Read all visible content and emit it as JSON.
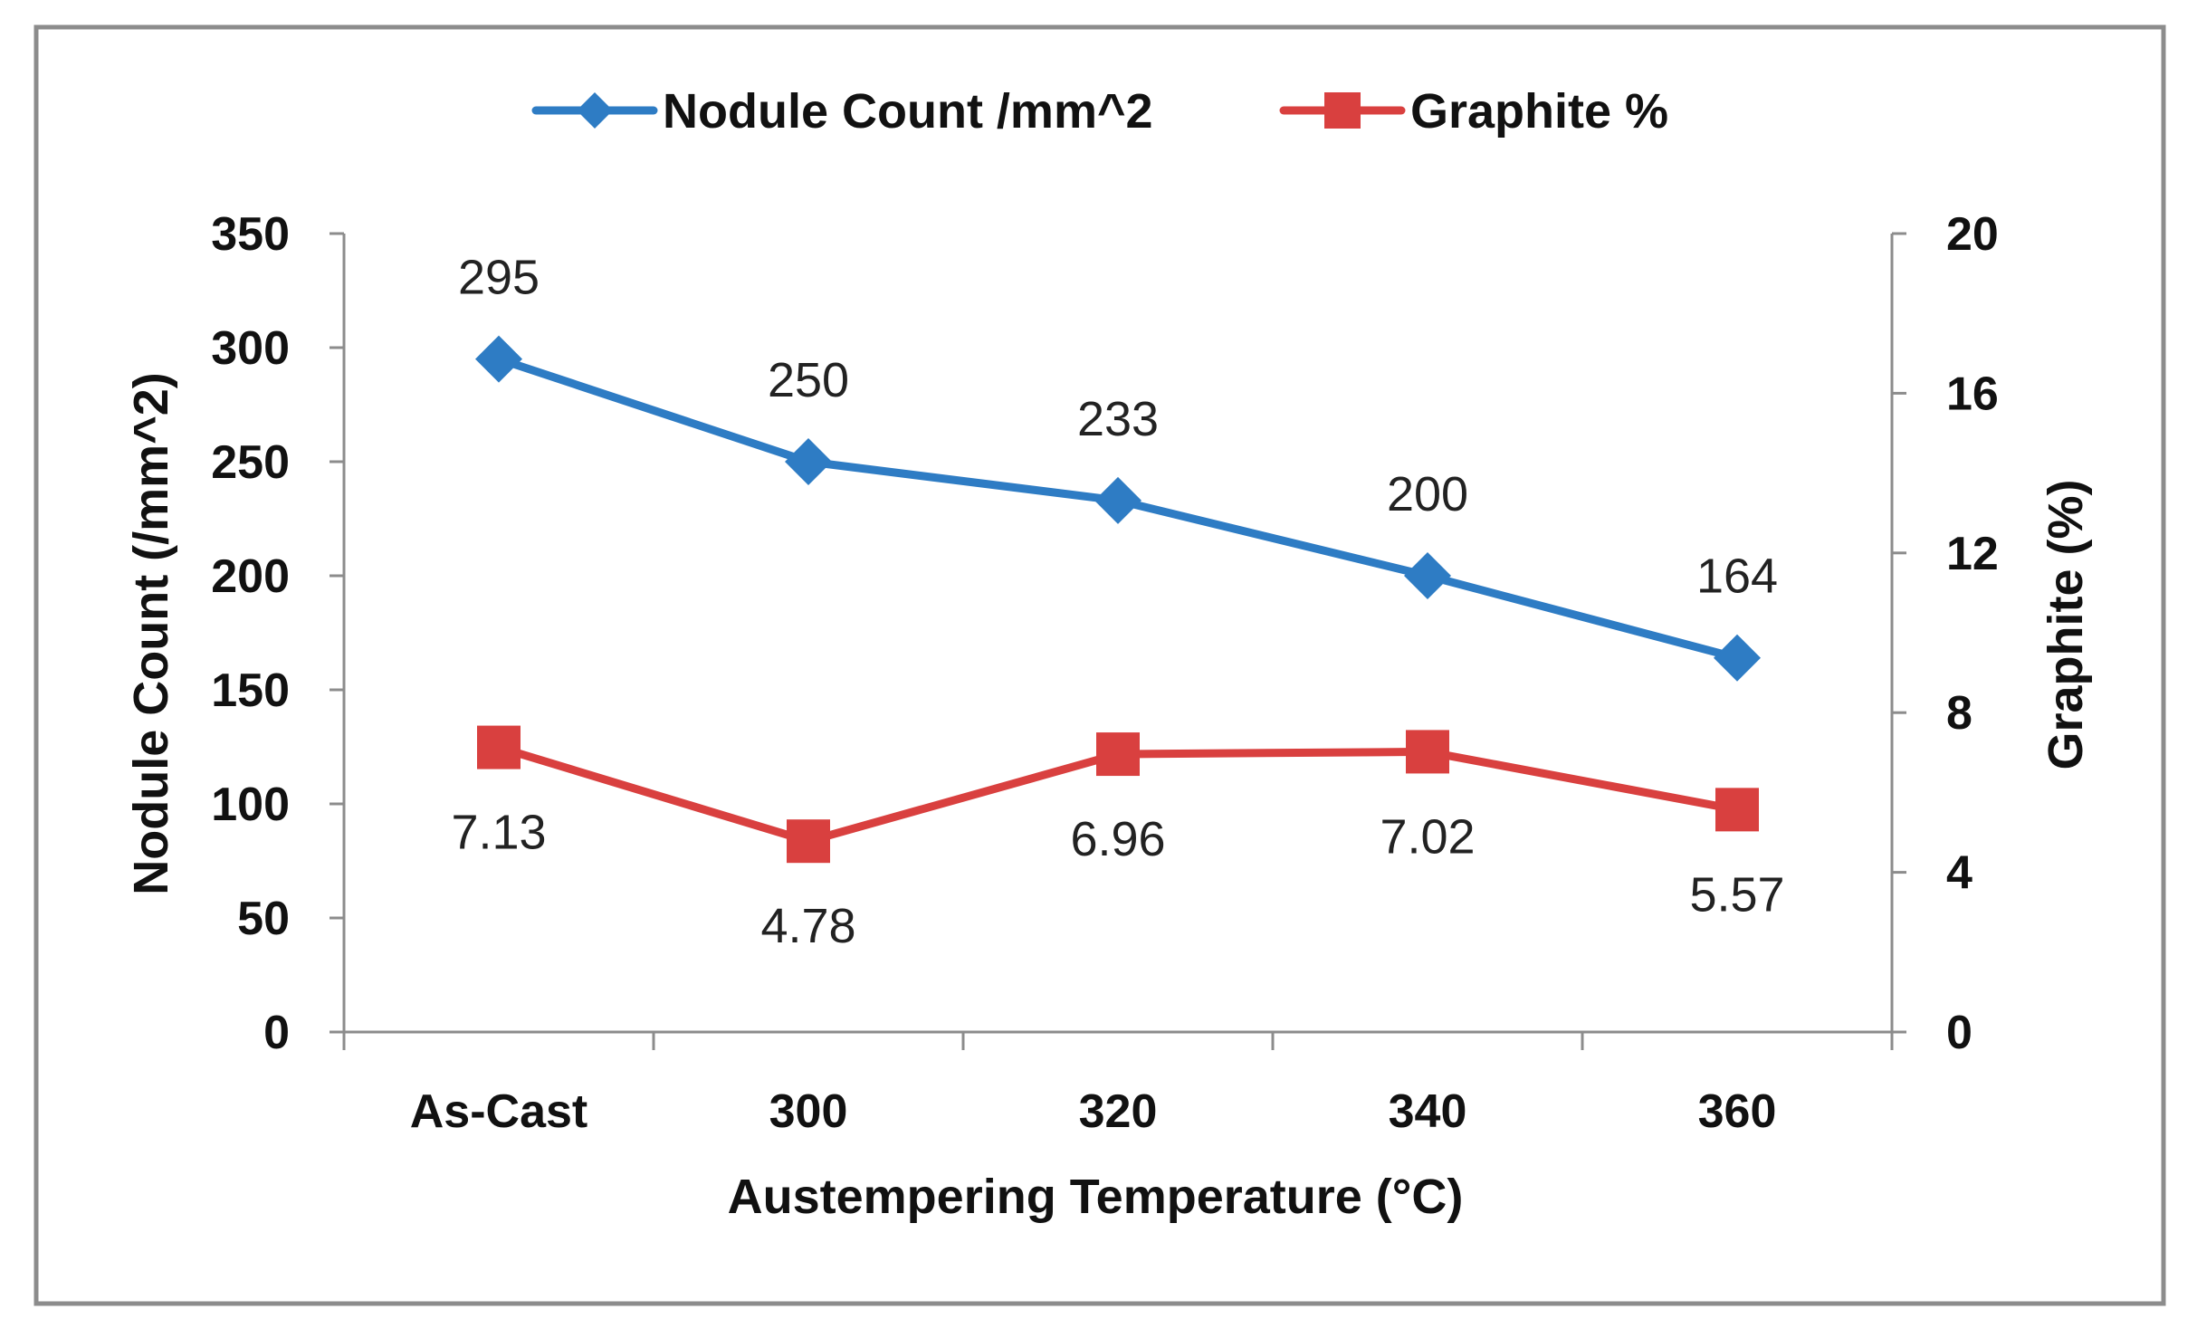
{
  "chart_data": {
    "type": "line",
    "categories": [
      "As-Cast",
      "300",
      "320",
      "340",
      "360"
    ],
    "xlabel": "Austempering Temperature (°C)",
    "ylabel_left": "Nodule Count (/mm^2)",
    "ylabel_right": "Graphite (%)",
    "ylim_left": [
      0,
      350
    ],
    "yticks_left": [
      0,
      50,
      100,
      150,
      200,
      250,
      300,
      350
    ],
    "ylim_right": [
      0,
      20
    ],
    "yticks_right": [
      0,
      4,
      8,
      12,
      16,
      20
    ],
    "grid": false,
    "legend_position": "top-center",
    "series": [
      {
        "name": "Nodule Count /mm^2",
        "axis": "left",
        "marker": "diamond",
        "color": "#2E7CC4",
        "values": [
          295,
          250,
          233,
          200,
          164
        ],
        "labels": [
          "295",
          "250",
          "233",
          "200",
          "164"
        ],
        "label_position": "above"
      },
      {
        "name": "Graphite %",
        "axis": "right",
        "marker": "square",
        "color": "#D9403F",
        "values": [
          7.13,
          4.78,
          6.96,
          7.02,
          5.57
        ],
        "labels": [
          "7.13",
          "4.78",
          "6.96",
          "7.02",
          "5.57"
        ],
        "label_position": "below"
      }
    ]
  }
}
